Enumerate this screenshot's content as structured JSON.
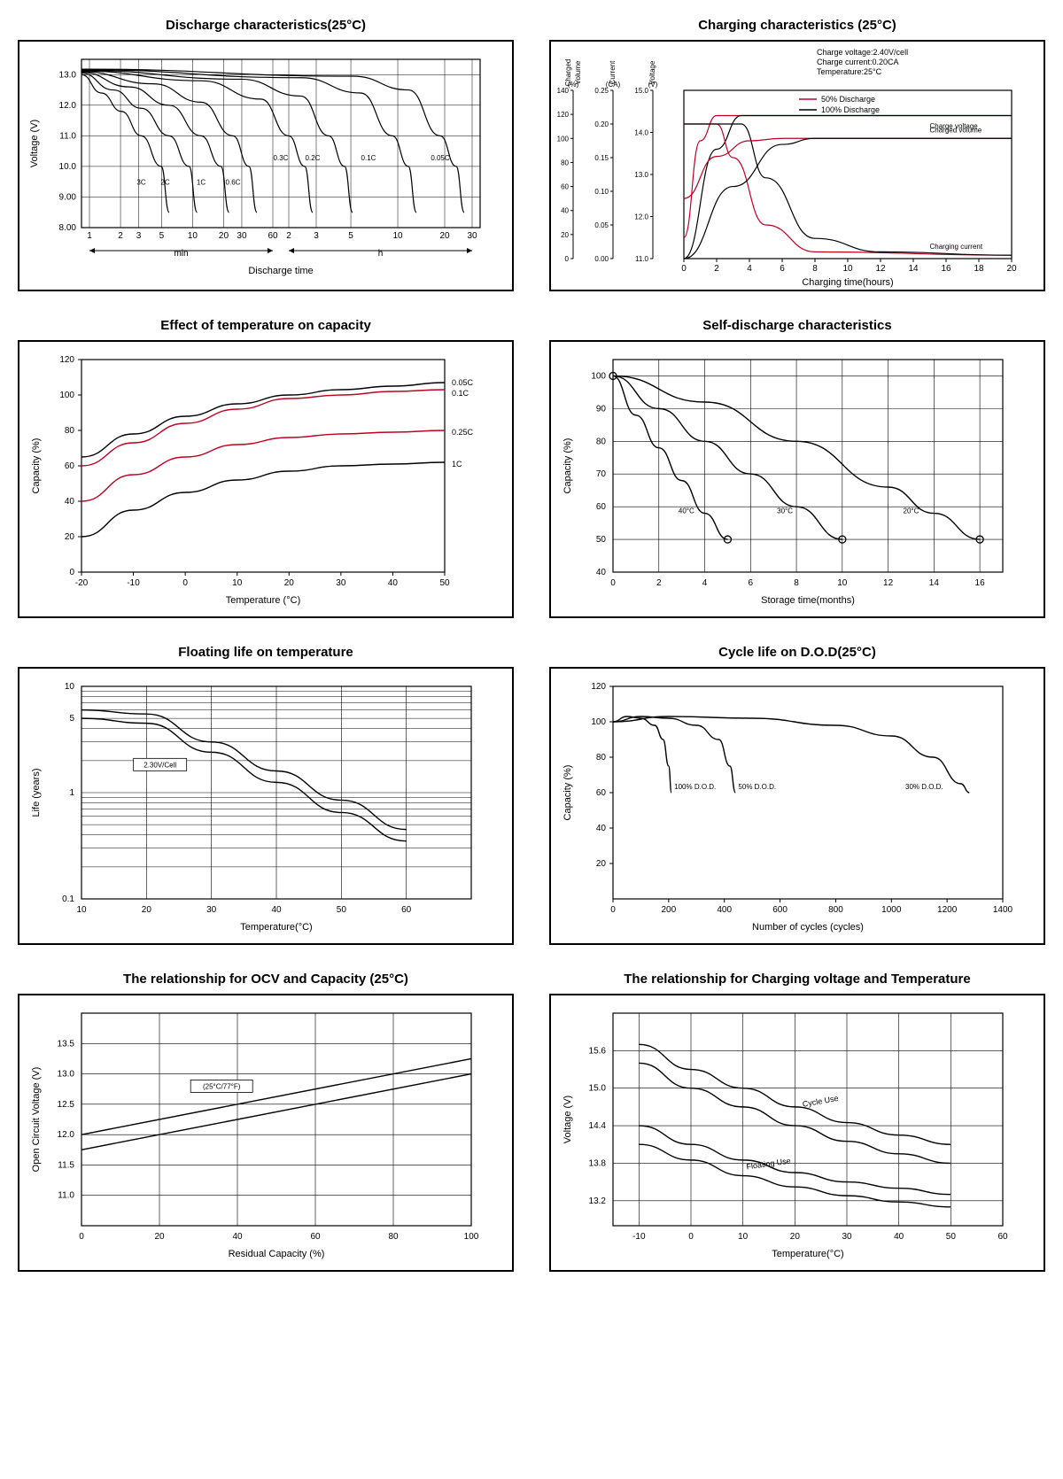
{
  "charts": {
    "discharge": {
      "title": "Discharge characteristics(25°C)",
      "type": "line",
      "ylabel": "Voltage (V)",
      "xlabel": "Discharge time",
      "x_sections": [
        "min",
        "h"
      ],
      "yticks": [
        8.0,
        9.0,
        10.0,
        11.0,
        12.0,
        13.0
      ],
      "ylim": [
        8,
        13.5
      ],
      "x_min_ticks": [
        1,
        2,
        3,
        5,
        10,
        20,
        30,
        60
      ],
      "x_h_ticks": [
        2,
        3,
        5,
        10,
        20,
        30
      ],
      "series_labels": [
        "3C",
        "2C",
        "1C",
        "0.6C",
        "0.3C",
        "0.2C",
        "0.1C",
        "0.05C"
      ],
      "line_color": "#000000",
      "grid_color": "#000000",
      "background_color": "#ffffff",
      "line_width": 1.2,
      "series": {
        "3C": [
          [
            0,
            13.0
          ],
          [
            0.05,
            12.4
          ],
          [
            0.1,
            11.8
          ],
          [
            0.15,
            11.0
          ],
          [
            0.2,
            10.0
          ],
          [
            0.22,
            8.5
          ]
        ],
        "2C": [
          [
            0,
            13.05
          ],
          [
            0.08,
            12.5
          ],
          [
            0.15,
            11.9
          ],
          [
            0.22,
            11.0
          ],
          [
            0.27,
            10.0
          ],
          [
            0.29,
            8.5
          ]
        ],
        "1C": [
          [
            0,
            13.08
          ],
          [
            0.12,
            12.6
          ],
          [
            0.22,
            12.0
          ],
          [
            0.3,
            11.0
          ],
          [
            0.35,
            10.0
          ],
          [
            0.37,
            8.5
          ]
        ],
        "0.6C": [
          [
            0,
            13.1
          ],
          [
            0.18,
            12.7
          ],
          [
            0.3,
            12.1
          ],
          [
            0.38,
            11.0
          ],
          [
            0.42,
            10.0
          ],
          [
            0.44,
            8.5
          ]
        ],
        "0.3C": [
          [
            0,
            13.12
          ],
          [
            0.3,
            12.8
          ],
          [
            0.45,
            12.2
          ],
          [
            0.52,
            11.0
          ],
          [
            0.56,
            10.0
          ],
          [
            0.58,
            8.5
          ]
        ],
        "0.2C": [
          [
            0,
            13.14
          ],
          [
            0.4,
            12.85
          ],
          [
            0.55,
            12.3
          ],
          [
            0.62,
            11.0
          ],
          [
            0.66,
            10.0
          ],
          [
            0.68,
            8.5
          ]
        ],
        "0.1C": [
          [
            0,
            13.16
          ],
          [
            0.55,
            12.9
          ],
          [
            0.7,
            12.4
          ],
          [
            0.78,
            11.0
          ],
          [
            0.82,
            10.0
          ],
          [
            0.84,
            8.5
          ]
        ],
        "0.05C": [
          [
            0,
            13.18
          ],
          [
            0.68,
            12.95
          ],
          [
            0.82,
            12.5
          ],
          [
            0.9,
            11.0
          ],
          [
            0.94,
            10.0
          ],
          [
            0.96,
            8.5
          ]
        ]
      }
    },
    "charging": {
      "title": "Charging characteristics (25°C)",
      "type": "line-multi-axis",
      "info_lines": [
        "Charge voltage:2.40V/cell",
        "Charge current:0.20CA",
        "Temperature:25°C"
      ],
      "legend": [
        {
          "label": "50% Discharge",
          "color": "#c00020"
        },
        {
          "label": "100% Discharge",
          "color": "#000000"
        }
      ],
      "annotations": [
        "Charged volume",
        "Charge voltage",
        "Charging current"
      ],
      "y_axes": [
        {
          "label": "Charged Volume (%)",
          "ticks": [
            0,
            20,
            40,
            60,
            80,
            100,
            120,
            140
          ]
        },
        {
          "label": "Current (CA)",
          "ticks": [
            0,
            0.05,
            0.1,
            0.15,
            0.2,
            0.25
          ]
        },
        {
          "label": "Voltage (V)",
          "ticks": [
            11.0,
            12.0,
            13.0,
            14.0,
            15.0
          ]
        }
      ],
      "xlabel": "Charging time(hours)",
      "xticks": [
        0,
        2,
        4,
        6,
        8,
        10,
        12,
        14,
        16,
        18,
        20
      ],
      "xlim": [
        0,
        20
      ],
      "colors": {
        "50": "#c00020",
        "100": "#000000"
      },
      "background_color": "#ffffff",
      "curves": {
        "voltage_50": [
          [
            0,
            11.5
          ],
          [
            1,
            13.8
          ],
          [
            2,
            14.4
          ],
          [
            3,
            14.4
          ],
          [
            20,
            14.4
          ]
        ],
        "voltage_100": [
          [
            0,
            11.0
          ],
          [
            2,
            13.6
          ],
          [
            3.5,
            14.4
          ],
          [
            5,
            14.4
          ],
          [
            20,
            14.4
          ]
        ],
        "current_50": [
          [
            0,
            0.2
          ],
          [
            2,
            0.2
          ],
          [
            3,
            0.15
          ],
          [
            5,
            0.05
          ],
          [
            8,
            0.01
          ],
          [
            20,
            0.005
          ]
        ],
        "current_100": [
          [
            0,
            0.2
          ],
          [
            3.5,
            0.2
          ],
          [
            5,
            0.12
          ],
          [
            8,
            0.03
          ],
          [
            12,
            0.01
          ],
          [
            20,
            0.005
          ]
        ],
        "volume_50": [
          [
            0,
            50
          ],
          [
            2,
            85
          ],
          [
            4,
            98
          ],
          [
            6,
            100
          ],
          [
            20,
            100
          ]
        ],
        "volume_100": [
          [
            0,
            0
          ],
          [
            3,
            60
          ],
          [
            6,
            95
          ],
          [
            8,
            100
          ],
          [
            20,
            100
          ]
        ]
      }
    },
    "temp_capacity": {
      "title": "Effect of temperature on capacity",
      "type": "line",
      "ylabel": "Capacity (%)",
      "xlabel": "Temperature (°C)",
      "xlim": [
        -20,
        50
      ],
      "ylim": [
        0,
        120
      ],
      "xticks": [
        -20,
        -10,
        0,
        10,
        20,
        30,
        40,
        50
      ],
      "yticks": [
        0,
        20,
        40,
        60,
        80,
        100,
        120
      ],
      "series_labels": [
        "0.05C",
        "0.1C",
        "0.25C",
        "1C"
      ],
      "colors": {
        "0.05C": "#000000",
        "0.1C": "#c00020",
        "0.25C": "#c00020",
        "1C": "#000000"
      },
      "background_color": "#ffffff",
      "line_width": 1.3,
      "series": {
        "0.05C": [
          [
            -20,
            65
          ],
          [
            -10,
            78
          ],
          [
            0,
            88
          ],
          [
            10,
            95
          ],
          [
            20,
            100
          ],
          [
            30,
            103
          ],
          [
            40,
            105
          ],
          [
            50,
            107
          ]
        ],
        "0.1C": [
          [
            -20,
            60
          ],
          [
            -10,
            73
          ],
          [
            0,
            84
          ],
          [
            10,
            92
          ],
          [
            20,
            98
          ],
          [
            30,
            100
          ],
          [
            40,
            102
          ],
          [
            50,
            103
          ]
        ],
        "0.25C": [
          [
            -20,
            40
          ],
          [
            -10,
            55
          ],
          [
            0,
            65
          ],
          [
            10,
            72
          ],
          [
            20,
            76
          ],
          [
            30,
            78
          ],
          [
            40,
            79
          ],
          [
            50,
            80
          ]
        ],
        "1C": [
          [
            -20,
            20
          ],
          [
            -10,
            35
          ],
          [
            0,
            45
          ],
          [
            10,
            52
          ],
          [
            20,
            57
          ],
          [
            30,
            60
          ],
          [
            40,
            61
          ],
          [
            50,
            62
          ]
        ]
      }
    },
    "self_discharge": {
      "title": "Self-discharge characteristics",
      "type": "line",
      "ylabel": "Capacity (%)",
      "xlabel": "Storage time(months)",
      "xlim": [
        0,
        17
      ],
      "ylim": [
        40,
        105
      ],
      "xticks": [
        0,
        2,
        4,
        6,
        8,
        10,
        12,
        14,
        16
      ],
      "yticks": [
        40,
        50,
        60,
        70,
        80,
        90,
        100
      ],
      "line_color": "#000000",
      "background_color": "#ffffff",
      "grid_color": "#000000",
      "series_labels": [
        "40°C",
        "30°C",
        "20°C"
      ],
      "series": {
        "40C": [
          [
            0,
            100
          ],
          [
            1,
            88
          ],
          [
            2,
            78
          ],
          [
            3,
            68
          ],
          [
            4,
            58
          ],
          [
            5,
            50
          ]
        ],
        "30C": [
          [
            0,
            100
          ],
          [
            2,
            90
          ],
          [
            4,
            80
          ],
          [
            6,
            70
          ],
          [
            8,
            60
          ],
          [
            10,
            50
          ]
        ],
        "20C": [
          [
            0,
            100
          ],
          [
            4,
            92
          ],
          [
            8,
            80
          ],
          [
            12,
            66
          ],
          [
            14,
            58
          ],
          [
            16,
            50
          ]
        ]
      },
      "end_markers": true
    },
    "floating_life": {
      "title": "Floating life on temperature",
      "type": "line-logy",
      "ylabel": "Life (years)",
      "xlabel": "Temperature(°C)",
      "xlim": [
        10,
        70
      ],
      "ylim_log": [
        0.1,
        10
      ],
      "xticks": [
        10,
        20,
        30,
        40,
        50,
        60
      ],
      "yticks_log": [
        0.1,
        1,
        5,
        10
      ],
      "annotation": "2.30V/Cell",
      "line_color": "#000000",
      "background_color": "#ffffff",
      "band": {
        "upper": [
          [
            10,
            6
          ],
          [
            20,
            5.5
          ],
          [
            30,
            3.0
          ],
          [
            40,
            1.6
          ],
          [
            50,
            0.85
          ],
          [
            60,
            0.45
          ]
        ],
        "lower": [
          [
            10,
            5
          ],
          [
            20,
            4.5
          ],
          [
            30,
            2.4
          ],
          [
            40,
            1.25
          ],
          [
            50,
            0.65
          ],
          [
            60,
            0.35
          ]
        ]
      }
    },
    "cycle_life": {
      "title": "Cycle life on D.O.D(25°C)",
      "type": "line",
      "ylabel": "Capacity (%)",
      "xlabel": "Number of cycles (cycles)",
      "xlim": [
        0,
        1400
      ],
      "ylim": [
        0,
        120
      ],
      "xticks": [
        0,
        200,
        400,
        600,
        800,
        1000,
        1200,
        1400
      ],
      "yticks": [
        20,
        40,
        60,
        80,
        100,
        120
      ],
      "series_labels": [
        "100% D.O.D.",
        "50% D.O.D.",
        "30% D.O.D."
      ],
      "line_color": "#000000",
      "background_color": "#ffffff",
      "series": {
        "100": [
          [
            0,
            100
          ],
          [
            50,
            103
          ],
          [
            100,
            102
          ],
          [
            150,
            98
          ],
          [
            180,
            90
          ],
          [
            200,
            75
          ],
          [
            210,
            60
          ]
        ],
        "50": [
          [
            0,
            100
          ],
          [
            100,
            103
          ],
          [
            200,
            102
          ],
          [
            300,
            98
          ],
          [
            380,
            90
          ],
          [
            420,
            75
          ],
          [
            440,
            60
          ]
        ],
        "30": [
          [
            0,
            100
          ],
          [
            200,
            103
          ],
          [
            500,
            102
          ],
          [
            800,
            98
          ],
          [
            1000,
            92
          ],
          [
            1150,
            80
          ],
          [
            1250,
            65
          ],
          [
            1280,
            60
          ]
        ]
      }
    },
    "ocv_capacity": {
      "title": "The relationship  for OCV and Capacity (25°C)",
      "type": "line",
      "ylabel": "Open Circuit Voltage (V)",
      "xlabel": "Residual Capacity (%)",
      "xlim": [
        0,
        100
      ],
      "ylim": [
        10.5,
        14
      ],
      "xticks": [
        0,
        20,
        40,
        60,
        80,
        100
      ],
      "yticks": [
        11.0,
        11.5,
        12.0,
        12.5,
        13.0,
        13.5
      ],
      "annotation": "(25°C/77°F)",
      "line_color": "#000000",
      "background_color": "#ffffff",
      "band": {
        "upper": [
          [
            0,
            12.0
          ],
          [
            100,
            13.25
          ]
        ],
        "lower": [
          [
            0,
            11.75
          ],
          [
            100,
            13.0
          ]
        ]
      }
    },
    "charge_voltage_temp": {
      "title": "The relationship for Charging voltage and Temperature",
      "type": "line",
      "ylabel": "Voltage (V)",
      "xlabel": "Temperature(°C)",
      "xlim": [
        -15,
        60
      ],
      "ylim": [
        12.8,
        16.2
      ],
      "xticks": [
        -10,
        0,
        10,
        20,
        30,
        40,
        50,
        60
      ],
      "yticks": [
        13.2,
        13.8,
        14.4,
        15.0,
        15.6
      ],
      "line_color": "#000000",
      "background_color": "#ffffff",
      "bands": {
        "cycle": {
          "label": "Cycle Use",
          "upper": [
            [
              -10,
              15.7
            ],
            [
              0,
              15.3
            ],
            [
              10,
              15.0
            ],
            [
              20,
              14.7
            ],
            [
              30,
              14.45
            ],
            [
              40,
              14.25
            ],
            [
              50,
              14.1
            ]
          ],
          "lower": [
            [
              -10,
              15.4
            ],
            [
              0,
              15.0
            ],
            [
              10,
              14.7
            ],
            [
              20,
              14.4
            ],
            [
              30,
              14.15
            ],
            [
              40,
              13.95
            ],
            [
              50,
              13.8
            ]
          ]
        },
        "float": {
          "label": "Floating Use",
          "upper": [
            [
              -10,
              14.4
            ],
            [
              0,
              14.1
            ],
            [
              10,
              13.85
            ],
            [
              20,
              13.65
            ],
            [
              30,
              13.5
            ],
            [
              40,
              13.4
            ],
            [
              50,
              13.3
            ]
          ],
          "lower": [
            [
              -10,
              14.1
            ],
            [
              0,
              13.85
            ],
            [
              10,
              13.6
            ],
            [
              20,
              13.42
            ],
            [
              30,
              13.28
            ],
            [
              40,
              13.18
            ],
            [
              50,
              13.1
            ]
          ]
        }
      }
    }
  }
}
